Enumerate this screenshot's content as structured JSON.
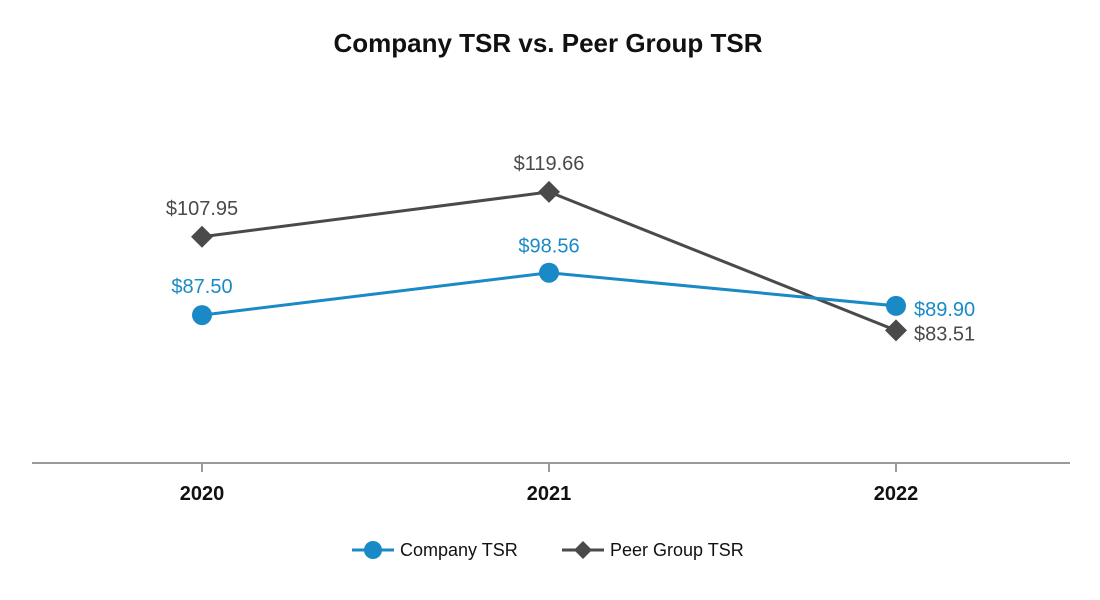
{
  "chart_data": {
    "type": "line",
    "title": "Company TSR vs. Peer Group TSR",
    "xlabel": "",
    "ylabel": "",
    "categories": [
      "2020",
      "2021",
      "2022"
    ],
    "ylim": [
      40,
      140
    ],
    "grid": false,
    "legend_position": "bottom",
    "series": [
      {
        "name": "Company TSR",
        "marker": "circle",
        "color": "#1a8ac6",
        "values": [
          87.5,
          98.56,
          89.9
        ],
        "labels": [
          "$87.50",
          "$98.56",
          "$89.90"
        ]
      },
      {
        "name": "Peer Group TSR",
        "marker": "diamond",
        "color": "#4a4a4a",
        "values": [
          107.95,
          119.66,
          83.51
        ],
        "labels": [
          "$107.95",
          "$119.66",
          "$83.51"
        ]
      }
    ]
  }
}
